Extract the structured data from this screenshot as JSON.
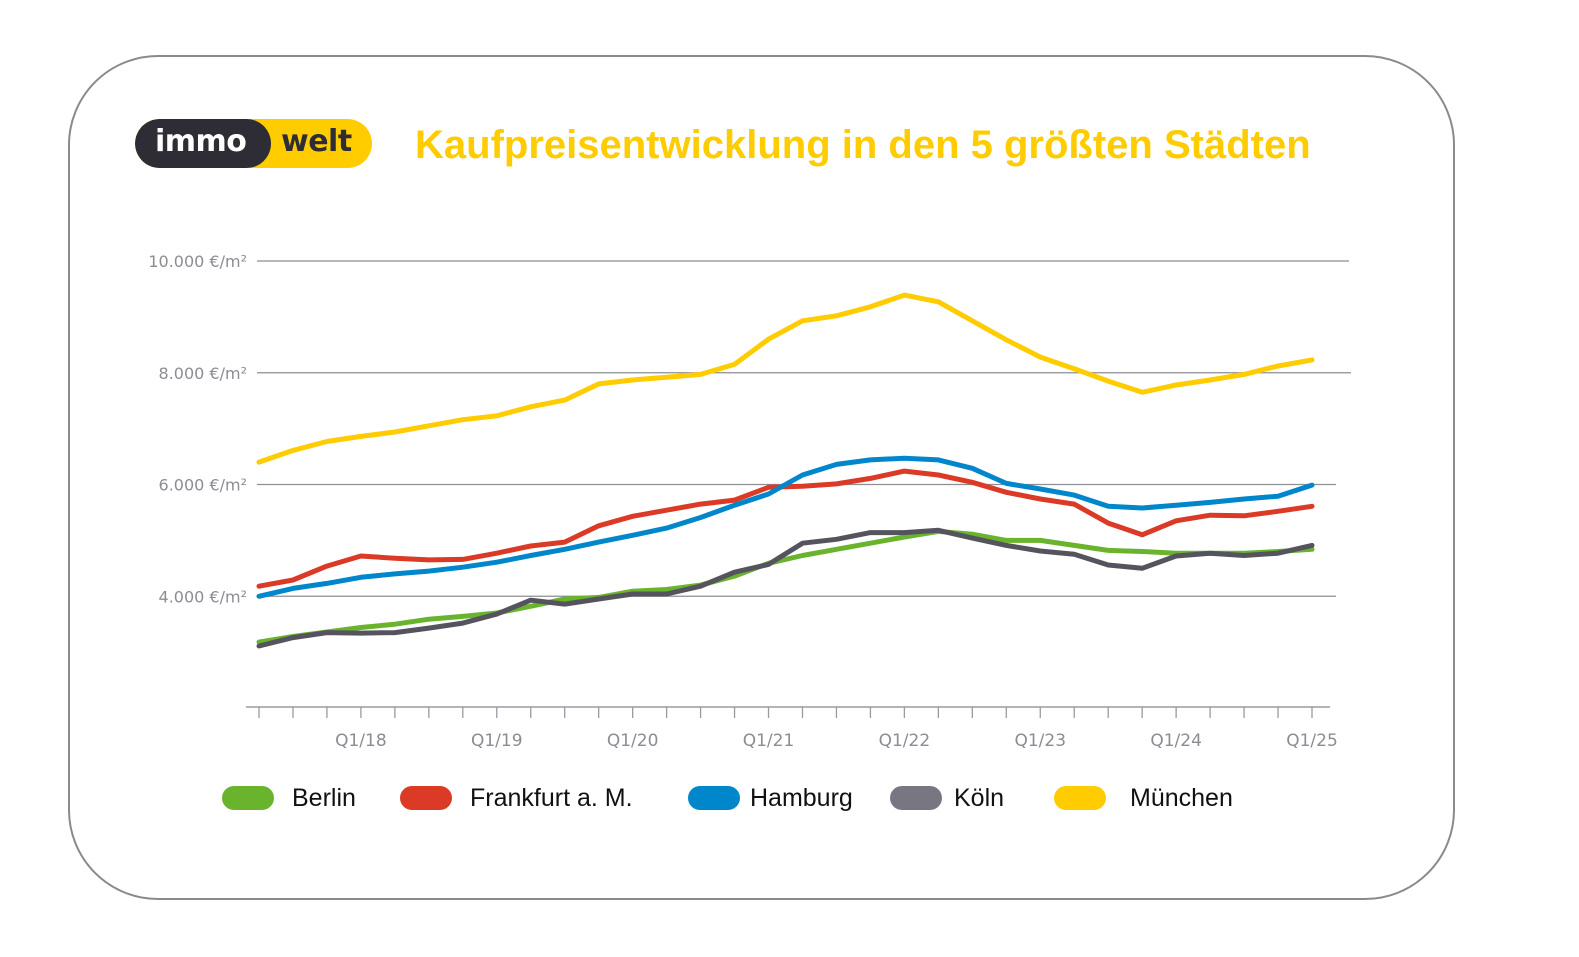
{
  "logo": {
    "part1": "immo",
    "part2": "welt",
    "dark_color": "#2e2d35",
    "accent_color": "#ffcc00"
  },
  "chart_data": {
    "type": "line",
    "title": "Kaufpreisentwicklung in den 5 größten Städten",
    "xlabel": "",
    "ylabel": "",
    "ylim": [
      2000,
      10000
    ],
    "yticks": [
      {
        "value": 10000,
        "label": "10.000 €/m²"
      },
      {
        "value": 8000,
        "label": "8.000 €/m²"
      },
      {
        "value": 6000,
        "label": "6.000 €/m²"
      },
      {
        "value": 4000,
        "label": "4.000 €/m²"
      }
    ],
    "x": [
      "Q2/17",
      "Q3/17",
      "Q4/17",
      "Q1/18",
      "Q2/18",
      "Q3/18",
      "Q4/18",
      "Q1/19",
      "Q2/19",
      "Q3/19",
      "Q4/19",
      "Q1/20",
      "Q2/20",
      "Q3/20",
      "Q4/20",
      "Q1/21",
      "Q2/21",
      "Q3/21",
      "Q4/21",
      "Q1/22",
      "Q2/22",
      "Q3/22",
      "Q4/22",
      "Q1/23",
      "Q2/23",
      "Q3/23",
      "Q4/23",
      "Q1/24",
      "Q2/24",
      "Q3/24",
      "Q4/24",
      "Q1/25"
    ],
    "xtick_labels": [
      {
        "index": 3,
        "label": "Q1/18"
      },
      {
        "index": 7,
        "label": "Q1/19"
      },
      {
        "index": 11,
        "label": "Q1/20"
      },
      {
        "index": 15,
        "label": "Q1/21"
      },
      {
        "index": 19,
        "label": "Q1/22"
      },
      {
        "index": 23,
        "label": "Q1/23"
      },
      {
        "index": 27,
        "label": "Q1/24"
      },
      {
        "index": 31,
        "label": "Q1/25"
      }
    ],
    "grid": "horizontal",
    "legend_position": "bottom",
    "series": [
      {
        "name": "Berlin",
        "color": "#6ab42d",
        "values": [
          3180,
          3280,
          3360,
          3440,
          3500,
          3590,
          3640,
          3700,
          3820,
          3950,
          3980,
          4090,
          4120,
          4200,
          4360,
          4590,
          4730,
          4840,
          4950,
          5060,
          5160,
          5110,
          5000,
          5000,
          4910,
          4820,
          4800,
          4770,
          4770,
          4770,
          4800,
          4840
        ]
      },
      {
        "name": "Frankfurt a. M.",
        "color": "#db3a26",
        "values": [
          4180,
          4290,
          4540,
          4720,
          4680,
          4650,
          4660,
          4770,
          4900,
          4970,
          5260,
          5430,
          5540,
          5650,
          5720,
          5950,
          5970,
          6010,
          6110,
          6240,
          6170,
          6040,
          5860,
          5740,
          5650,
          5310,
          5100,
          5350,
          5450,
          5440,
          5520,
          5610
        ]
      },
      {
        "name": "Hamburg",
        "color": "#0087cb",
        "values": [
          4000,
          4140,
          4230,
          4340,
          4400,
          4450,
          4520,
          4610,
          4730,
          4840,
          4970,
          5090,
          5220,
          5410,
          5630,
          5830,
          6170,
          6360,
          6440,
          6470,
          6440,
          6290,
          6020,
          5920,
          5810,
          5610,
          5580,
          5630,
          5680,
          5740,
          5790,
          5990
        ]
      },
      {
        "name": "Köln",
        "color": "#55545e",
        "legend_color": "#787682",
        "values": [
          3110,
          3260,
          3350,
          3340,
          3350,
          3430,
          3520,
          3680,
          3930,
          3860,
          3950,
          4040,
          4040,
          4180,
          4430,
          4570,
          4950,
          5020,
          5140,
          5140,
          5180,
          5040,
          4910,
          4810,
          4750,
          4560,
          4500,
          4720,
          4770,
          4730,
          4770,
          4910
        ]
      },
      {
        "name": "München",
        "color": "#ffcc00",
        "values": [
          6400,
          6610,
          6770,
          6860,
          6940,
          7050,
          7160,
          7230,
          7390,
          7510,
          7800,
          7870,
          7920,
          7970,
          8150,
          8600,
          8930,
          9020,
          9180,
          9390,
          9270,
          8930,
          8590,
          8280,
          8070,
          7850,
          7650,
          7780,
          7870,
          7970,
          8120,
          8230
        ]
      }
    ]
  }
}
